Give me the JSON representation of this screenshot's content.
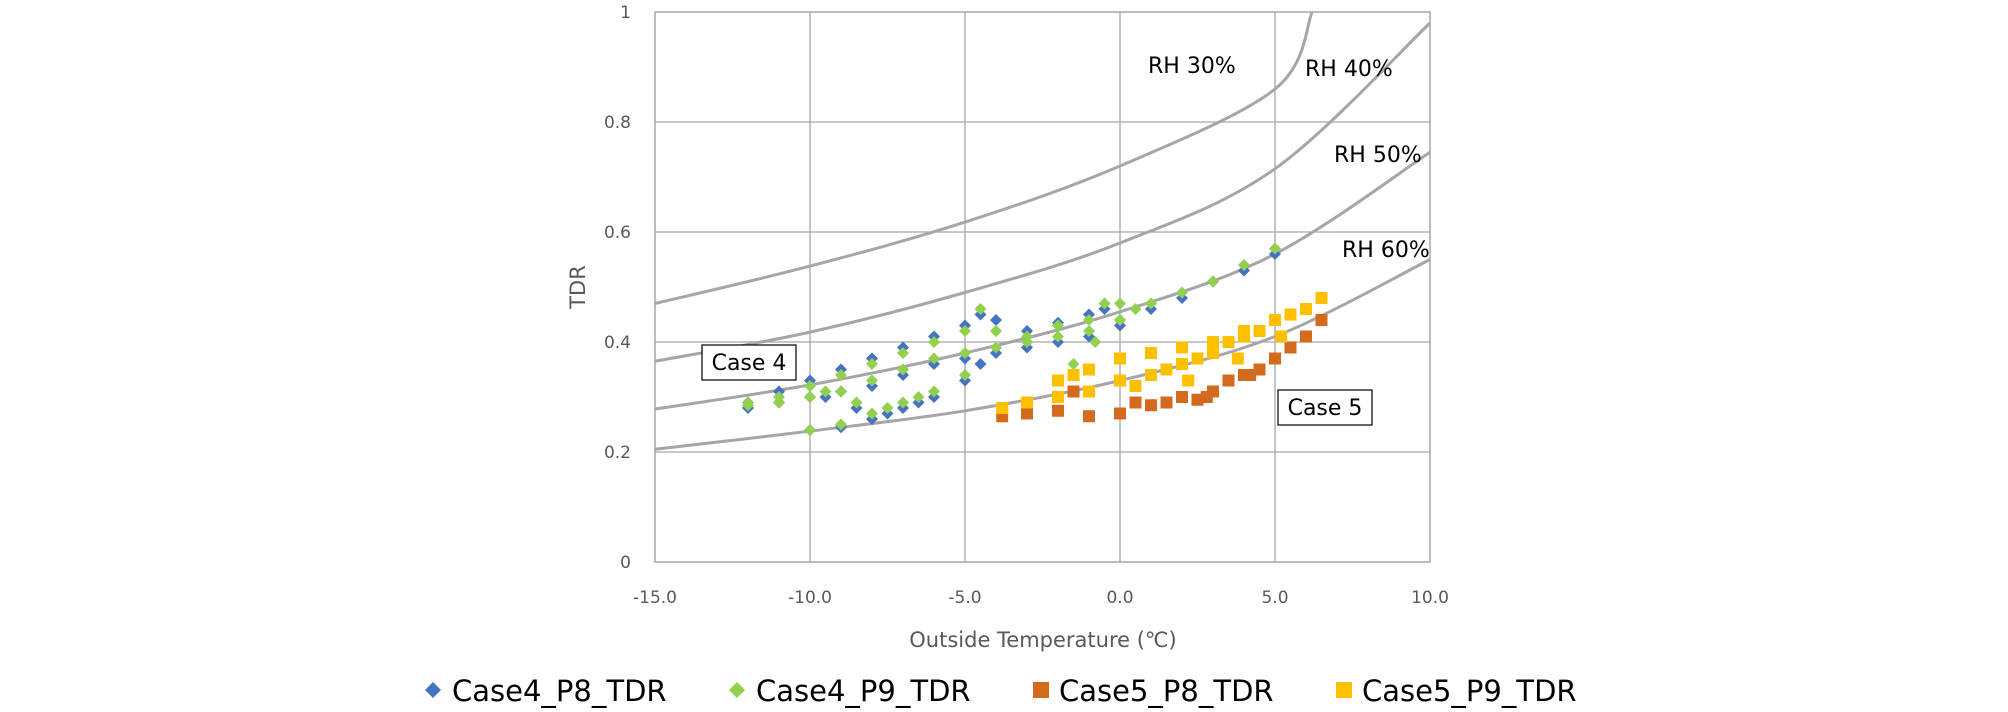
{
  "chart_data": {
    "type": "scatter",
    "xlabel": "Outside Temperature (℃)",
    "ylabel": "TDR",
    "xlim": [
      -15,
      10
    ],
    "ylim": [
      0,
      1
    ],
    "x_ticks": [
      "-15.0",
      "-10.0",
      "-5.0",
      "0.0",
      "5.0",
      "10.0"
    ],
    "y_ticks": [
      "0",
      "0.2",
      "0.4",
      "0.6",
      "0.8",
      "1"
    ],
    "grid": true,
    "legend_position": "bottom",
    "colors": {
      "Case4_P8_TDR": "#4472C4",
      "Case4_P9_TDR": "#92D050",
      "Case5_P8_TDR": "#D46A1E",
      "Case5_P9_TDR": "#FFC000",
      "rh_curve": "#A6A6A6",
      "grid": "#A6A6A6"
    },
    "rh_curves": [
      {
        "label": "RH 30%",
        "x": [
          -15,
          -10,
          -5,
          0,
          5,
          6.2
        ],
        "y": [
          0.47,
          0.538,
          0.618,
          0.72,
          0.86,
          1.0
        ]
      },
      {
        "label": "RH 40%",
        "x": [
          -15,
          -10,
          -5,
          0,
          5,
          10
        ],
        "y": [
          0.365,
          0.418,
          0.49,
          0.58,
          0.715,
          0.98
        ]
      },
      {
        "label": "RH 50%",
        "x": [
          -15,
          -10,
          -5,
          0,
          5,
          10
        ],
        "y": [
          0.278,
          0.322,
          0.38,
          0.455,
          0.56,
          0.745
        ]
      },
      {
        "label": "RH 60%",
        "x": [
          -15,
          -10,
          -5,
          0,
          5,
          10
        ],
        "y": [
          0.205,
          0.238,
          0.275,
          0.33,
          0.41,
          0.55
        ]
      }
    ],
    "annotations": [
      "Case 4",
      "Case 5"
    ],
    "series": [
      {
        "name": "Case4_P8_TDR",
        "marker": "diamond",
        "x": [
          -12,
          -11,
          -10,
          -9,
          -8,
          -7,
          -6,
          -5,
          -4.5,
          -4,
          -3,
          -2,
          -1,
          -0.5,
          0,
          1,
          2,
          3,
          4,
          5,
          -12,
          -11,
          -10,
          -9,
          -8,
          -7,
          -6,
          -5,
          -4,
          -3,
          -2,
          -1,
          0,
          -10,
          -9,
          -8,
          -7,
          -6,
          -5,
          -4.5,
          -9.5,
          -8.5,
          -7.5,
          -6.5
        ],
        "y": [
          0.29,
          0.31,
          0.33,
          0.35,
          0.37,
          0.39,
          0.41,
          0.43,
          0.45,
          0.44,
          0.42,
          0.435,
          0.45,
          0.46,
          0.44,
          0.46,
          0.48,
          0.51,
          0.53,
          0.56,
          0.28,
          0.29,
          0.3,
          0.31,
          0.32,
          0.34,
          0.36,
          0.37,
          0.38,
          0.39,
          0.4,
          0.41,
          0.43,
          0.24,
          0.245,
          0.26,
          0.28,
          0.3,
          0.33,
          0.36,
          0.3,
          0.28,
          0.27,
          0.29
        ]
      },
      {
        "name": "Case4_P9_TDR",
        "marker": "diamond",
        "x": [
          -12,
          -11,
          -10,
          -9,
          -8,
          -7,
          -6,
          -5,
          -4.5,
          -4,
          -3,
          -2,
          -1,
          -0.5,
          0,
          0.5,
          1,
          2,
          3,
          4,
          5,
          -12,
          -11,
          -10,
          -9,
          -8,
          -7,
          -6,
          -5,
          -4,
          -3,
          -2,
          -1,
          0,
          -10,
          -9,
          -8,
          -7,
          -6,
          -5,
          -9.5,
          -8.5,
          -7.5,
          -6.5,
          -1.5,
          -0.8
        ],
        "y": [
          0.29,
          0.3,
          0.32,
          0.34,
          0.36,
          0.38,
          0.4,
          0.42,
          0.46,
          0.42,
          0.41,
          0.43,
          0.44,
          0.47,
          0.47,
          0.46,
          0.47,
          0.49,
          0.51,
          0.54,
          0.57,
          0.285,
          0.29,
          0.3,
          0.31,
          0.33,
          0.35,
          0.37,
          0.38,
          0.39,
          0.4,
          0.41,
          0.42,
          0.44,
          0.24,
          0.25,
          0.27,
          0.29,
          0.31,
          0.34,
          0.31,
          0.29,
          0.28,
          0.3,
          0.36,
          0.4
        ]
      },
      {
        "name": "Case5_P8_TDR",
        "marker": "square",
        "x": [
          -3.8,
          -3,
          -2,
          -1,
          0,
          1,
          1.5,
          2,
          2.5,
          3,
          3.5,
          4,
          4.5,
          5,
          5.5,
          6,
          6.5,
          -1.5,
          0.5,
          2.8,
          4.2
        ],
        "y": [
          0.265,
          0.27,
          0.275,
          0.265,
          0.27,
          0.285,
          0.29,
          0.3,
          0.295,
          0.31,
          0.33,
          0.34,
          0.35,
          0.37,
          0.39,
          0.41,
          0.44,
          0.31,
          0.29,
          0.3,
          0.34
        ]
      },
      {
        "name": "Case5_P9_TDR",
        "marker": "square",
        "x": [
          -3.8,
          -3,
          -2,
          -1,
          0,
          1,
          1.5,
          2,
          2.5,
          3,
          3.5,
          4,
          4.5,
          5,
          5.5,
          6,
          6.5,
          -2,
          -1,
          0,
          1,
          2,
          3,
          4,
          5,
          6,
          -3,
          -1.5,
          0.5,
          2.2,
          3.8,
          5.2
        ],
        "y": [
          0.28,
          0.29,
          0.3,
          0.31,
          0.33,
          0.34,
          0.35,
          0.36,
          0.37,
          0.38,
          0.4,
          0.41,
          0.42,
          0.44,
          0.45,
          0.46,
          0.48,
          0.33,
          0.35,
          0.37,
          0.38,
          0.39,
          0.4,
          0.42,
          0.44,
          0.46,
          0.29,
          0.34,
          0.32,
          0.33,
          0.37,
          0.41
        ]
      }
    ]
  }
}
